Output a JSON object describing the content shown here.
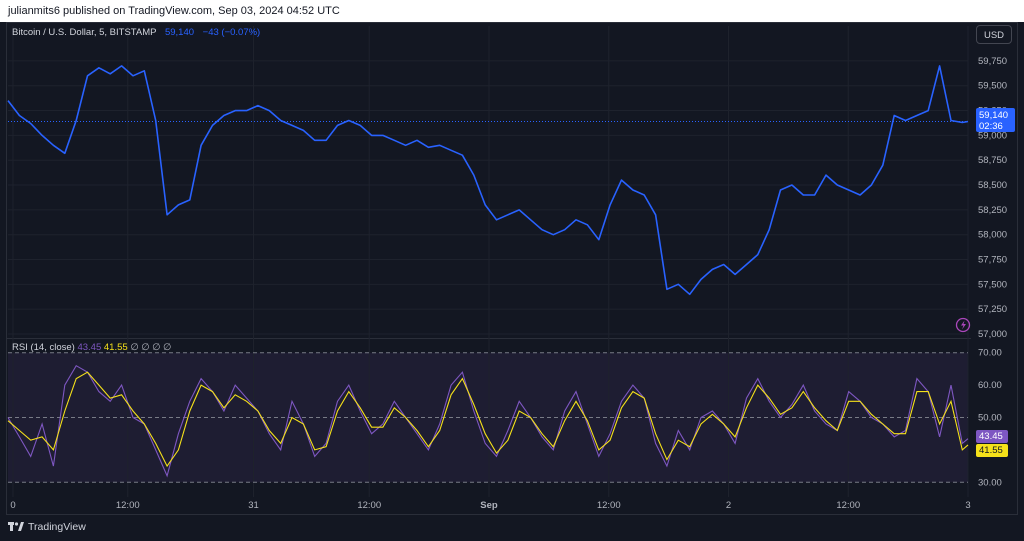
{
  "header": {
    "published": "julianmits6 published on TradingView.com, Sep 03, 2024 04:52 UTC"
  },
  "legend": {
    "symbol": "Bitcoin / U.S. Dollar, 5, BITSTAMP",
    "last": "59,140",
    "change": "−43 (−0.07%)"
  },
  "rsi_legend": {
    "name": "RSI (14, close)",
    "rsi": "43.45",
    "ma": "41.55",
    "extras": "∅ ∅ ∅ ∅"
  },
  "currency_button": "USD",
  "price_badge": {
    "price": "59,140",
    "countdown": "02:36"
  },
  "rsi_badges": {
    "rsi": "43.45",
    "ma": "41.55"
  },
  "brand": "TradingView",
  "colors": {
    "price_line": "#2962ff",
    "rsi_line": "#7e57c2",
    "rsi_ma": "#f5e11a",
    "background": "#131722"
  },
  "chart_data": [
    {
      "type": "line",
      "title": "Bitcoin / U.S. Dollar, 5, BITSTAMP",
      "ylim": [
        57000,
        59900
      ],
      "y_ticks": [
        "59,750",
        "59,500",
        "59,250",
        "59,000",
        "58,750",
        "58,500",
        "58,250",
        "58,000",
        "57,750",
        "57,500",
        "57,250",
        "57,000"
      ],
      "y_tick_values": [
        59750,
        59500,
        59250,
        59000,
        58750,
        58500,
        58250,
        58000,
        57750,
        57500,
        57250,
        57000
      ],
      "x_ticks": [
        "0",
        "12:00",
        "31",
        "12:00",
        "Sep",
        "12:00",
        "2",
        "12:00",
        "3"
      ],
      "series": [
        {
          "x": [
            0,
            12,
            24,
            36,
            48,
            60,
            72,
            84,
            96,
            108,
            120,
            132,
            144,
            156,
            168,
            180,
            192,
            204,
            216,
            228,
            240,
            252,
            264,
            276,
            288,
            300,
            312,
            324,
            336,
            348,
            360,
            372,
            384,
            396,
            408,
            420,
            432,
            444,
            456,
            468,
            480,
            492,
            504,
            516,
            528,
            540,
            552,
            564,
            576,
            588,
            600,
            612,
            624,
            636,
            648,
            660,
            672,
            684,
            696,
            708,
            720,
            732,
            744,
            756,
            768,
            780,
            792,
            804,
            816,
            828,
            840,
            852,
            864,
            876,
            888,
            900,
            912,
            924,
            936,
            948,
            960,
            972,
            984,
            996,
            1008,
            1014
          ],
          "values": [
            59350,
            59200,
            59120,
            59000,
            58900,
            58820,
            59150,
            59600,
            59680,
            59620,
            59700,
            59600,
            59650,
            59150,
            58200,
            58300,
            58350,
            58900,
            59100,
            59200,
            59250,
            59250,
            59300,
            59250,
            59150,
            59100,
            59050,
            58950,
            58950,
            59100,
            59150,
            59100,
            59000,
            59000,
            58950,
            58900,
            58950,
            58880,
            58900,
            58850,
            58800,
            58600,
            58300,
            58150,
            58200,
            58250,
            58150,
            58050,
            58000,
            58050,
            58150,
            58100,
            57950,
            58300,
            58550,
            58450,
            58400,
            58200,
            57450,
            57500,
            57400,
            57550,
            57650,
            57700,
            57600,
            57700,
            57800,
            58050,
            58450,
            58500,
            58400,
            58400,
            58600,
            58500,
            58450,
            58400,
            58500,
            58700,
            59200,
            59150,
            59200,
            59250,
            59700,
            59150,
            59130,
            59140
          ]
        }
      ]
    },
    {
      "type": "line",
      "title": "RSI (14, close)",
      "ylim": [
        27,
        73
      ],
      "y_ticks": [
        "70.00",
        "60.00",
        "50.00",
        "40.00",
        "30.00"
      ],
      "y_tick_values": [
        70,
        60,
        50,
        40,
        30
      ],
      "bands": {
        "upper": 70,
        "middle": 50,
        "lower": 30
      },
      "series": [
        {
          "name": "RSI",
          "x": [
            0,
            12,
            24,
            36,
            48,
            60,
            72,
            84,
            96,
            108,
            120,
            132,
            144,
            156,
            168,
            180,
            192,
            204,
            216,
            228,
            240,
            252,
            264,
            276,
            288,
            300,
            312,
            324,
            336,
            348,
            360,
            372,
            384,
            396,
            408,
            420,
            432,
            444,
            456,
            468,
            480,
            492,
            504,
            516,
            528,
            540,
            552,
            564,
            576,
            588,
            600,
            612,
            624,
            636,
            648,
            660,
            672,
            684,
            696,
            708,
            720,
            732,
            744,
            756,
            768,
            780,
            792,
            804,
            816,
            828,
            840,
            852,
            864,
            876,
            888,
            900,
            912,
            924,
            936,
            948,
            960,
            972,
            984,
            996,
            1008,
            1014
          ],
          "values": [
            50,
            44,
            38,
            48,
            35,
            60,
            66,
            64,
            58,
            55,
            60,
            50,
            48,
            40,
            32,
            45,
            55,
            62,
            58,
            52,
            60,
            56,
            52,
            45,
            40,
            55,
            48,
            38,
            42,
            55,
            60,
            52,
            45,
            48,
            55,
            50,
            45,
            40,
            48,
            60,
            64,
            52,
            42,
            38,
            46,
            55,
            50,
            44,
            40,
            52,
            58,
            48,
            38,
            45,
            55,
            60,
            56,
            42,
            35,
            46,
            40,
            50,
            52,
            48,
            42,
            56,
            62,
            55,
            50,
            54,
            60,
            52,
            48,
            46,
            58,
            55,
            50,
            48,
            44,
            46,
            62,
            58,
            44,
            60,
            42,
            43.45
          ]
        },
        {
          "name": "MA",
          "x": [
            0,
            12,
            24,
            36,
            48,
            60,
            72,
            84,
            96,
            108,
            120,
            132,
            144,
            156,
            168,
            180,
            192,
            204,
            216,
            228,
            240,
            252,
            264,
            276,
            288,
            300,
            312,
            324,
            336,
            348,
            360,
            372,
            384,
            396,
            408,
            420,
            432,
            444,
            456,
            468,
            480,
            492,
            504,
            516,
            528,
            540,
            552,
            564,
            576,
            588,
            600,
            612,
            624,
            636,
            648,
            660,
            672,
            684,
            696,
            708,
            720,
            732,
            744,
            756,
            768,
            780,
            792,
            804,
            816,
            828,
            840,
            852,
            864,
            876,
            888,
            900,
            912,
            924,
            936,
            948,
            960,
            972,
            984,
            996,
            1008,
            1014
          ],
          "values": [
            49,
            46,
            43,
            44,
            40,
            52,
            62,
            64,
            60,
            56,
            57,
            52,
            48,
            42,
            35,
            40,
            52,
            60,
            58,
            53,
            57,
            55,
            52,
            46,
            42,
            50,
            48,
            40,
            41,
            52,
            58,
            53,
            47,
            47,
            53,
            50,
            46,
            41,
            46,
            57,
            62,
            54,
            45,
            39,
            43,
            52,
            50,
            45,
            41,
            49,
            55,
            49,
            40,
            43,
            53,
            58,
            56,
            45,
            37,
            43,
            41,
            48,
            51,
            48,
            44,
            53,
            60,
            56,
            51,
            53,
            58,
            53,
            49,
            46,
            55,
            55,
            51,
            48,
            45,
            45,
            58,
            58,
            48,
            55,
            40,
            41.55
          ]
        }
      ]
    }
  ]
}
